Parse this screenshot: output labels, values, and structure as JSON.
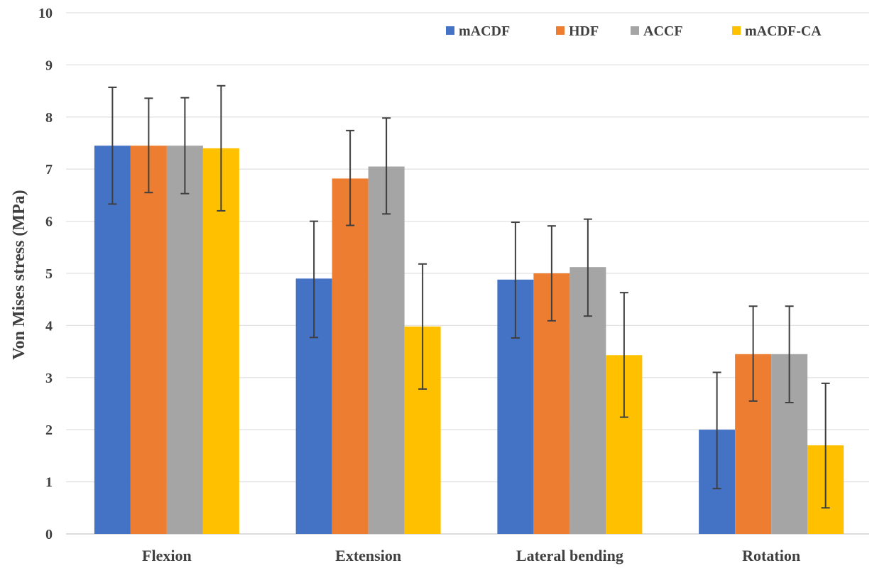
{
  "chart_data": {
    "type": "bar",
    "title": "",
    "xlabel": "",
    "ylabel": "Von Mises stress (MPa)",
    "ylim": [
      0,
      10
    ],
    "yticks": [
      "0",
      "1",
      "2",
      "3",
      "4",
      "5",
      "6",
      "7",
      "8",
      "9",
      "10"
    ],
    "categories": [
      "Flexion",
      "Extension",
      "Lateral bending",
      "Rotation"
    ],
    "grid": true,
    "legend_position": "top-right",
    "series": [
      {
        "name": "mACDF",
        "color": "#4472C4",
        "values": [
          7.45,
          4.9,
          4.88,
          2.0
        ],
        "error_low": [
          6.33,
          3.77,
          3.76,
          0.87
        ],
        "error_high": [
          8.57,
          6.0,
          5.98,
          3.1
        ]
      },
      {
        "name": "HDF",
        "color": "#ED7D31",
        "values": [
          7.45,
          6.82,
          5.0,
          3.45
        ],
        "error_low": [
          6.55,
          5.92,
          4.09,
          2.55
        ],
        "error_high": [
          8.36,
          7.74,
          5.91,
          4.37
        ]
      },
      {
        "name": "ACCF",
        "color": "#A5A5A5",
        "values": [
          7.45,
          7.05,
          5.12,
          3.45
        ],
        "error_low": [
          6.53,
          6.14,
          4.18,
          2.52
        ],
        "error_high": [
          8.37,
          7.98,
          6.04,
          4.37
        ]
      },
      {
        "name": "mACDF-CA",
        "color": "#FFC000",
        "values": [
          7.4,
          3.98,
          3.43,
          1.7
        ],
        "error_low": [
          6.2,
          2.78,
          2.24,
          0.5
        ],
        "error_high": [
          8.6,
          5.18,
          4.63,
          2.89
        ]
      }
    ]
  }
}
